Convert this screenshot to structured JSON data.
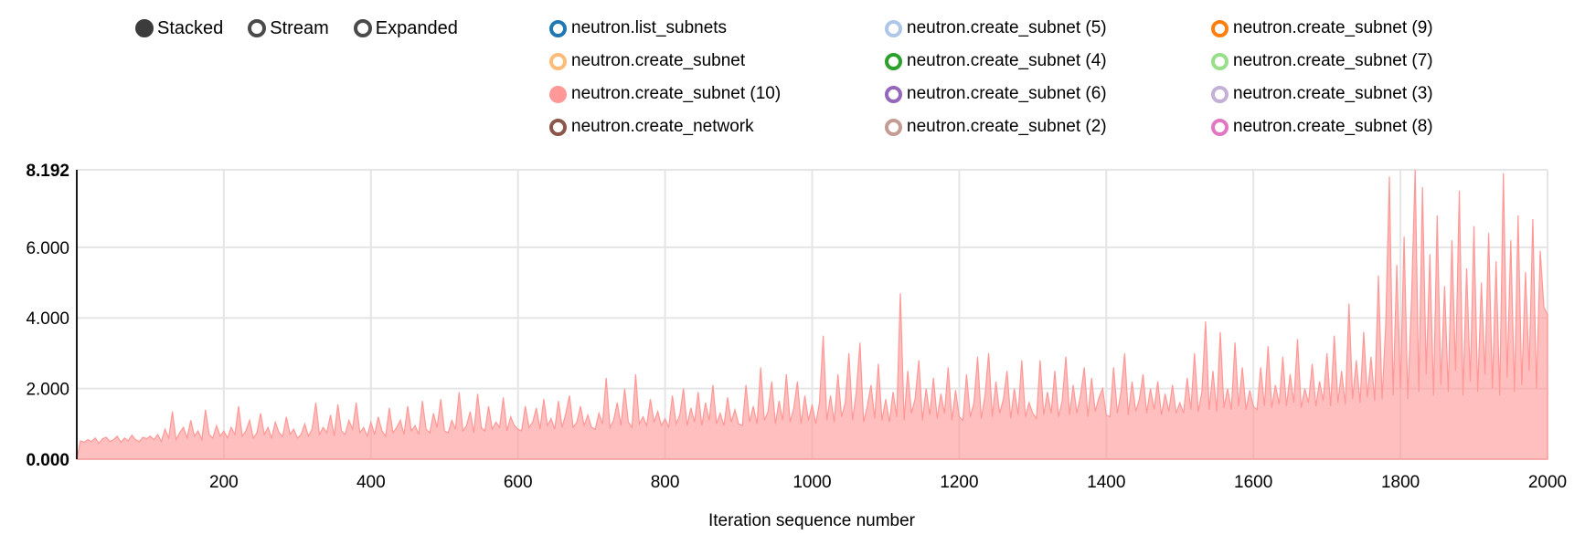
{
  "controls": {
    "options": [
      {
        "label": "Stacked",
        "selected": true
      },
      {
        "label": "Stream",
        "selected": false
      },
      {
        "label": "Expanded",
        "selected": false
      }
    ],
    "selected_color": "#3c3c3c",
    "ring_color": "#4a4a4a"
  },
  "legend": {
    "items": [
      {
        "label": "neutron.list_subnets",
        "color": "#1f77b4",
        "filled": false
      },
      {
        "label": "neutron.create_subnet (5)",
        "color": "#aec7e8",
        "filled": false
      },
      {
        "label": "neutron.create_subnet (9)",
        "color": "#ff7f0e",
        "filled": false
      },
      {
        "label": "neutron.create_subnet",
        "color": "#ffbb78",
        "filled": false
      },
      {
        "label": "neutron.create_subnet (4)",
        "color": "#2ca02c",
        "filled": false
      },
      {
        "label": "neutron.create_subnet (7)",
        "color": "#98df8a",
        "filled": false
      },
      {
        "label": "neutron.create_subnet (10)",
        "color": "#ff9896",
        "filled": true
      },
      {
        "label": "neutron.create_subnet (6)",
        "color": "#9467bd",
        "filled": false
      },
      {
        "label": "neutron.create_subnet (3)",
        "color": "#c5b0d5",
        "filled": false
      },
      {
        "label": "neutron.create_network",
        "color": "#8c564b",
        "filled": false
      },
      {
        "label": "neutron.create_subnet (2)",
        "color": "#c49c94",
        "filled": false
      },
      {
        "label": "neutron.create_subnet (8)",
        "color": "#e377c2",
        "filled": false
      }
    ]
  },
  "chart_data": {
    "type": "area",
    "title": "",
    "xlabel": "Iteration sequence number",
    "ylabel": "",
    "xlim": [
      0,
      2000
    ],
    "ylim": [
      0,
      8.192
    ],
    "grid": true,
    "legend_position": "top",
    "x_ticks": [
      200,
      400,
      600,
      800,
      1000,
      1200,
      1400,
      1600,
      1800,
      2000
    ],
    "y_ticks": [
      {
        "label": "8.192",
        "value": 8.192,
        "bold": true
      },
      {
        "label": "6.000",
        "value": 6,
        "bold": false
      },
      {
        "label": "4.000",
        "value": 4,
        "bold": false
      },
      {
        "label": "2.000",
        "value": 2,
        "bold": false
      },
      {
        "label": "0.000",
        "value": 0,
        "bold": true
      }
    ],
    "series": [
      {
        "name": "neutron.create_subnet (10)",
        "color": "#ff9896",
        "fill_opacity": 0.62,
        "x_start": 5,
        "x_step": 5,
        "values": [
          0.52,
          0.48,
          0.55,
          0.5,
          0.6,
          0.45,
          0.58,
          0.62,
          0.5,
          0.55,
          0.65,
          0.48,
          0.6,
          0.52,
          0.68,
          0.55,
          0.5,
          0.62,
          0.58,
          0.65,
          0.55,
          0.7,
          0.5,
          0.85,
          0.6,
          1.35,
          0.55,
          0.75,
          0.9,
          0.6,
          1.1,
          0.65,
          0.8,
          0.55,
          1.4,
          0.7,
          0.6,
          0.95,
          0.65,
          0.8,
          0.6,
          0.9,
          0.7,
          1.5,
          0.65,
          0.8,
          1.1,
          0.6,
          0.75,
          1.3,
          0.7,
          0.9,
          0.6,
          1.05,
          0.75,
          0.65,
          1.2,
          0.7,
          0.85,
          0.6,
          0.7,
          1.0,
          0.65,
          0.85,
          1.6,
          0.7,
          0.9,
          0.75,
          1.25,
          0.65,
          1.55,
          0.8,
          0.7,
          1.1,
          0.85,
          1.6,
          0.75,
          0.9,
          0.65,
          1.05,
          0.7,
          1.2,
          0.8,
          0.65,
          1.45,
          0.75,
          0.9,
          1.1,
          0.7,
          1.5,
          0.8,
          0.95,
          0.7,
          1.65,
          0.85,
          0.75,
          1.3,
          0.9,
          1.7,
          0.8,
          0.75,
          1.1,
          0.85,
          1.9,
          0.8,
          0.95,
          1.35,
          0.75,
          1.85,
          0.9,
          0.8,
          1.5,
          0.85,
          1.05,
          0.9,
          1.75,
          0.8,
          1.2,
          0.95,
          0.85,
          0.8,
          1.5,
          0.9,
          1.05,
          1.45,
          0.85,
          1.7,
          0.95,
          1.15,
          0.85,
          1.65,
          0.9,
          1.3,
          1.8,
          0.9,
          1.05,
          1.5,
          0.95,
          1.25,
          0.9,
          0.85,
          1.3,
          1.0,
          2.3,
          0.9,
          1.1,
          1.6,
          0.95,
          2.0,
          1.05,
          0.9,
          2.4,
          1.0,
          1.2,
          0.95,
          1.7,
          1.05,
          1.35,
          0.95,
          1.15,
          0.9,
          1.8,
          1.0,
          1.25,
          2.0,
          0.95,
          1.45,
          1.05,
          1.9,
          0.95,
          1.6,
          1.1,
          2.1,
          1.0,
          1.3,
          0.95,
          1.75,
          1.05,
          1.4,
          1.0,
          0.95,
          2.1,
          1.05,
          1.5,
          1.0,
          2.6,
          1.1,
          1.35,
          2.2,
          1.0,
          1.65,
          1.1,
          2.4,
          1.05,
          1.45,
          2.2,
          1.0,
          1.8,
          1.1,
          1.55,
          1.0,
          1.6,
          3.5,
          1.1,
          1.8,
          1.05,
          2.4,
          1.2,
          1.6,
          3.0,
          1.1,
          1.9,
          3.3,
          1.05,
          1.5,
          2.1,
          1.15,
          2.7,
          1.1,
          1.7,
          1.05,
          1.9,
          1.2,
          4.7,
          1.1,
          2.5,
          1.3,
          1.7,
          2.8,
          1.1,
          2.0,
          1.25,
          2.3,
          1.15,
          1.85,
          1.3,
          2.6,
          1.1,
          1.95,
          1.2,
          1.1,
          2.4,
          1.2,
          1.6,
          2.9,
          1.15,
          1.8,
          3.0,
          1.2,
          2.2,
          1.3,
          1.7,
          2.5,
          1.15,
          2.0,
          1.25,
          2.8,
          1.2,
          1.6,
          1.3,
          1.15,
          2.8,
          1.25,
          1.9,
          1.3,
          2.5,
          1.2,
          1.65,
          2.9,
          1.25,
          2.1,
          1.3,
          1.8,
          2.6,
          1.2,
          2.3,
          1.35,
          1.75,
          2.0,
          1.25,
          1.2,
          2.6,
          1.3,
          1.9,
          3.0,
          1.25,
          2.2,
          1.35,
          1.7,
          2.4,
          1.3,
          2.0,
          1.4,
          2.2,
          1.25,
          1.85,
          1.35,
          2.1,
          1.3,
          1.6,
          1.3,
          2.3,
          1.4,
          3.0,
          1.35,
          1.9,
          3.9,
          1.4,
          2.5,
          1.35,
          3.6,
          1.45,
          2.0,
          1.4,
          3.3,
          1.5,
          2.6,
          1.4,
          1.95,
          1.5,
          1.4,
          2.6,
          1.5,
          3.2,
          1.45,
          2.1,
          1.55,
          2.9,
          1.5,
          2.4,
          1.6,
          3.4,
          1.45,
          2.0,
          1.6,
          2.7,
          1.5,
          2.2,
          1.65,
          3.0,
          1.5,
          3.5,
          1.6,
          2.5,
          1.55,
          4.4,
          1.7,
          2.8,
          1.6,
          3.6,
          1.75,
          2.9,
          1.65,
          5.2,
          1.7,
          3.8,
          8.0,
          1.8,
          5.5,
          2.0,
          6.3,
          1.7,
          4.5,
          8.192,
          1.9,
          7.7,
          2.4,
          5.8,
          1.8,
          6.9,
          2.1,
          4.9,
          1.9,
          6.2,
          2.5,
          7.6,
          1.8,
          5.4,
          2.2,
          6.6,
          1.9,
          5.0,
          2.4,
          6.4,
          2.0,
          5.6,
          1.8,
          8.1,
          2.3,
          6.2,
          1.9,
          6.9,
          2.1,
          5.3,
          2.5,
          6.8,
          2.0,
          5.9,
          4.3,
          4.1
        ]
      }
    ]
  }
}
